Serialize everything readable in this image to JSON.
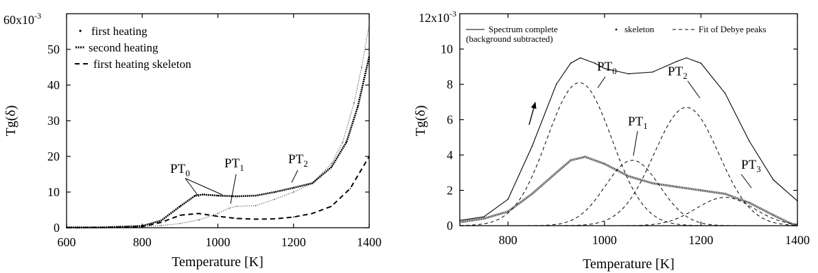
{
  "chart_data": [
    {
      "type": "line",
      "xlabel": "Temperature [K]",
      "ylabel": "Tg(δ)",
      "xlim": [
        600,
        1400
      ],
      "ylim": [
        0,
        60
      ],
      "xticks": [
        "600",
        "800",
        "1000",
        "1200",
        "1400"
      ],
      "yticks": [
        "0",
        "10",
        "20",
        "30",
        "40",
        "50"
      ],
      "y_top_label": "60x10",
      "y_top_exp": "-3",
      "legend": {
        "position": "top-left",
        "entries": [
          "first heating",
          "second heating",
          "first heating skeleton"
        ]
      },
      "annotations": [
        {
          "base": "PT",
          "sub": "0"
        },
        {
          "base": "PT",
          "sub": "1"
        },
        {
          "base": "PT",
          "sub": "2"
        }
      ],
      "series": [
        {
          "name": "first heating",
          "style": "dotted-fine",
          "x": [
            600,
            700,
            800,
            850,
            900,
            950,
            1000,
            1030,
            1050,
            1100,
            1150,
            1200,
            1250,
            1300,
            1330,
            1360,
            1380,
            1400
          ],
          "y": [
            0.1,
            0.1,
            0.3,
            0.6,
            1.2,
            2.2,
            4.0,
            5.5,
            6.0,
            6.2,
            8.0,
            10.0,
            12.5,
            18.0,
            24.0,
            35.0,
            45.0,
            57.0
          ]
        },
        {
          "name": "second heating",
          "style": "dense-dots",
          "x": [
            600,
            700,
            800,
            850,
            900,
            940,
            960,
            1000,
            1050,
            1100,
            1150,
            1200,
            1250,
            1300,
            1340,
            1370,
            1400
          ],
          "y": [
            0.1,
            0.1,
            0.5,
            2.0,
            6.0,
            9.0,
            9.3,
            9.0,
            8.8,
            9.0,
            10.0,
            11.2,
            12.5,
            17.0,
            24.0,
            34.0,
            48.0
          ]
        },
        {
          "name": "first heating skeleton",
          "style": "dashed",
          "x": [
            600,
            700,
            800,
            850,
            900,
            950,
            1000,
            1050,
            1100,
            1150,
            1200,
            1250,
            1300,
            1350,
            1400
          ],
          "y": [
            0.0,
            0.1,
            0.3,
            1.5,
            3.5,
            4.0,
            3.2,
            2.6,
            2.4,
            2.5,
            3.0,
            4.0,
            6.0,
            11.0,
            20.0
          ]
        }
      ]
    },
    {
      "type": "line",
      "xlabel": "Temperature [K]",
      "ylabel": "Tg(δ)",
      "xlim": [
        700,
        1400
      ],
      "ylim": [
        0,
        12
      ],
      "xticks": [
        "800",
        "1000",
        "1200",
        "1400"
      ],
      "yticks": [
        "0",
        "2",
        "4",
        "6",
        "8",
        "10"
      ],
      "y_top_label": "12x10",
      "y_top_exp": "-3",
      "legend": {
        "position": "top",
        "entries": [
          "Spectrum complete",
          "skeleton",
          "Fit of Debye peaks"
        ],
        "note": "(background subtracted)"
      },
      "annotations": [
        {
          "base": "PT",
          "sub": "0"
        },
        {
          "base": "PT",
          "sub": "1"
        },
        {
          "base": "PT",
          "sub": "2"
        },
        {
          "base": "PT",
          "sub": "3"
        }
      ],
      "series": [
        {
          "name": "Spectrum complete",
          "style": "solid",
          "x": [
            700,
            750,
            800,
            850,
            900,
            930,
            950,
            980,
            1000,
            1050,
            1100,
            1150,
            1170,
            1200,
            1250,
            1300,
            1350,
            1400
          ],
          "y": [
            0.3,
            0.5,
            1.5,
            4.5,
            8.0,
            9.2,
            9.5,
            9.2,
            8.9,
            8.6,
            8.7,
            9.3,
            9.5,
            9.2,
            7.5,
            4.8,
            2.6,
            1.4
          ]
        },
        {
          "name": "skeleton",
          "style": "thick-grey",
          "x": [
            700,
            750,
            800,
            850,
            900,
            930,
            960,
            1000,
            1050,
            1100,
            1150,
            1200,
            1250,
            1300,
            1350,
            1380,
            1400
          ],
          "y": [
            0.2,
            0.4,
            0.8,
            1.8,
            3.0,
            3.7,
            3.9,
            3.5,
            2.8,
            2.4,
            2.2,
            2.0,
            1.8,
            1.3,
            0.6,
            0.2,
            0.0
          ]
        },
        {
          "name": "Fit of Debye peaks",
          "style": "dashed",
          "peaks": [
            {
              "center": 948,
              "amp": 8.1,
              "width": 95
            },
            {
              "center": 1058,
              "amp": 3.7,
              "width": 80
            },
            {
              "center": 1170,
              "amp": 6.7,
              "width": 95
            },
            {
              "center": 1250,
              "amp": 1.6,
              "width": 85
            }
          ]
        }
      ]
    }
  ]
}
